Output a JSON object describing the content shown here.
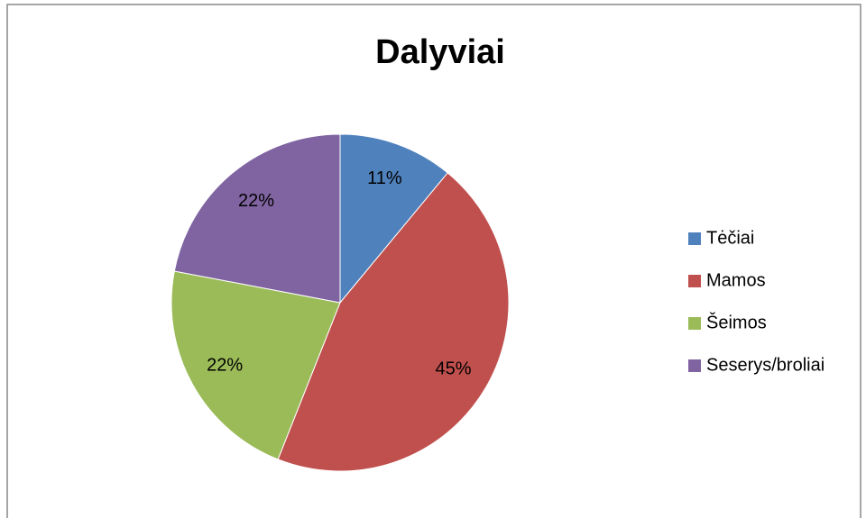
{
  "chart_data": {
    "type": "pie",
    "title": "Dalyviai",
    "categories": [
      "Tėčiai",
      "Mamos",
      "Šeimos",
      "Seserys/broliai"
    ],
    "values": [
      11,
      45,
      22,
      22
    ],
    "value_labels": [
      "11%",
      "45%",
      "22%",
      "22%"
    ],
    "colors": [
      "#4f81bd",
      "#c0504d",
      "#9bbb59",
      "#8064a2"
    ],
    "legend": "right"
  }
}
